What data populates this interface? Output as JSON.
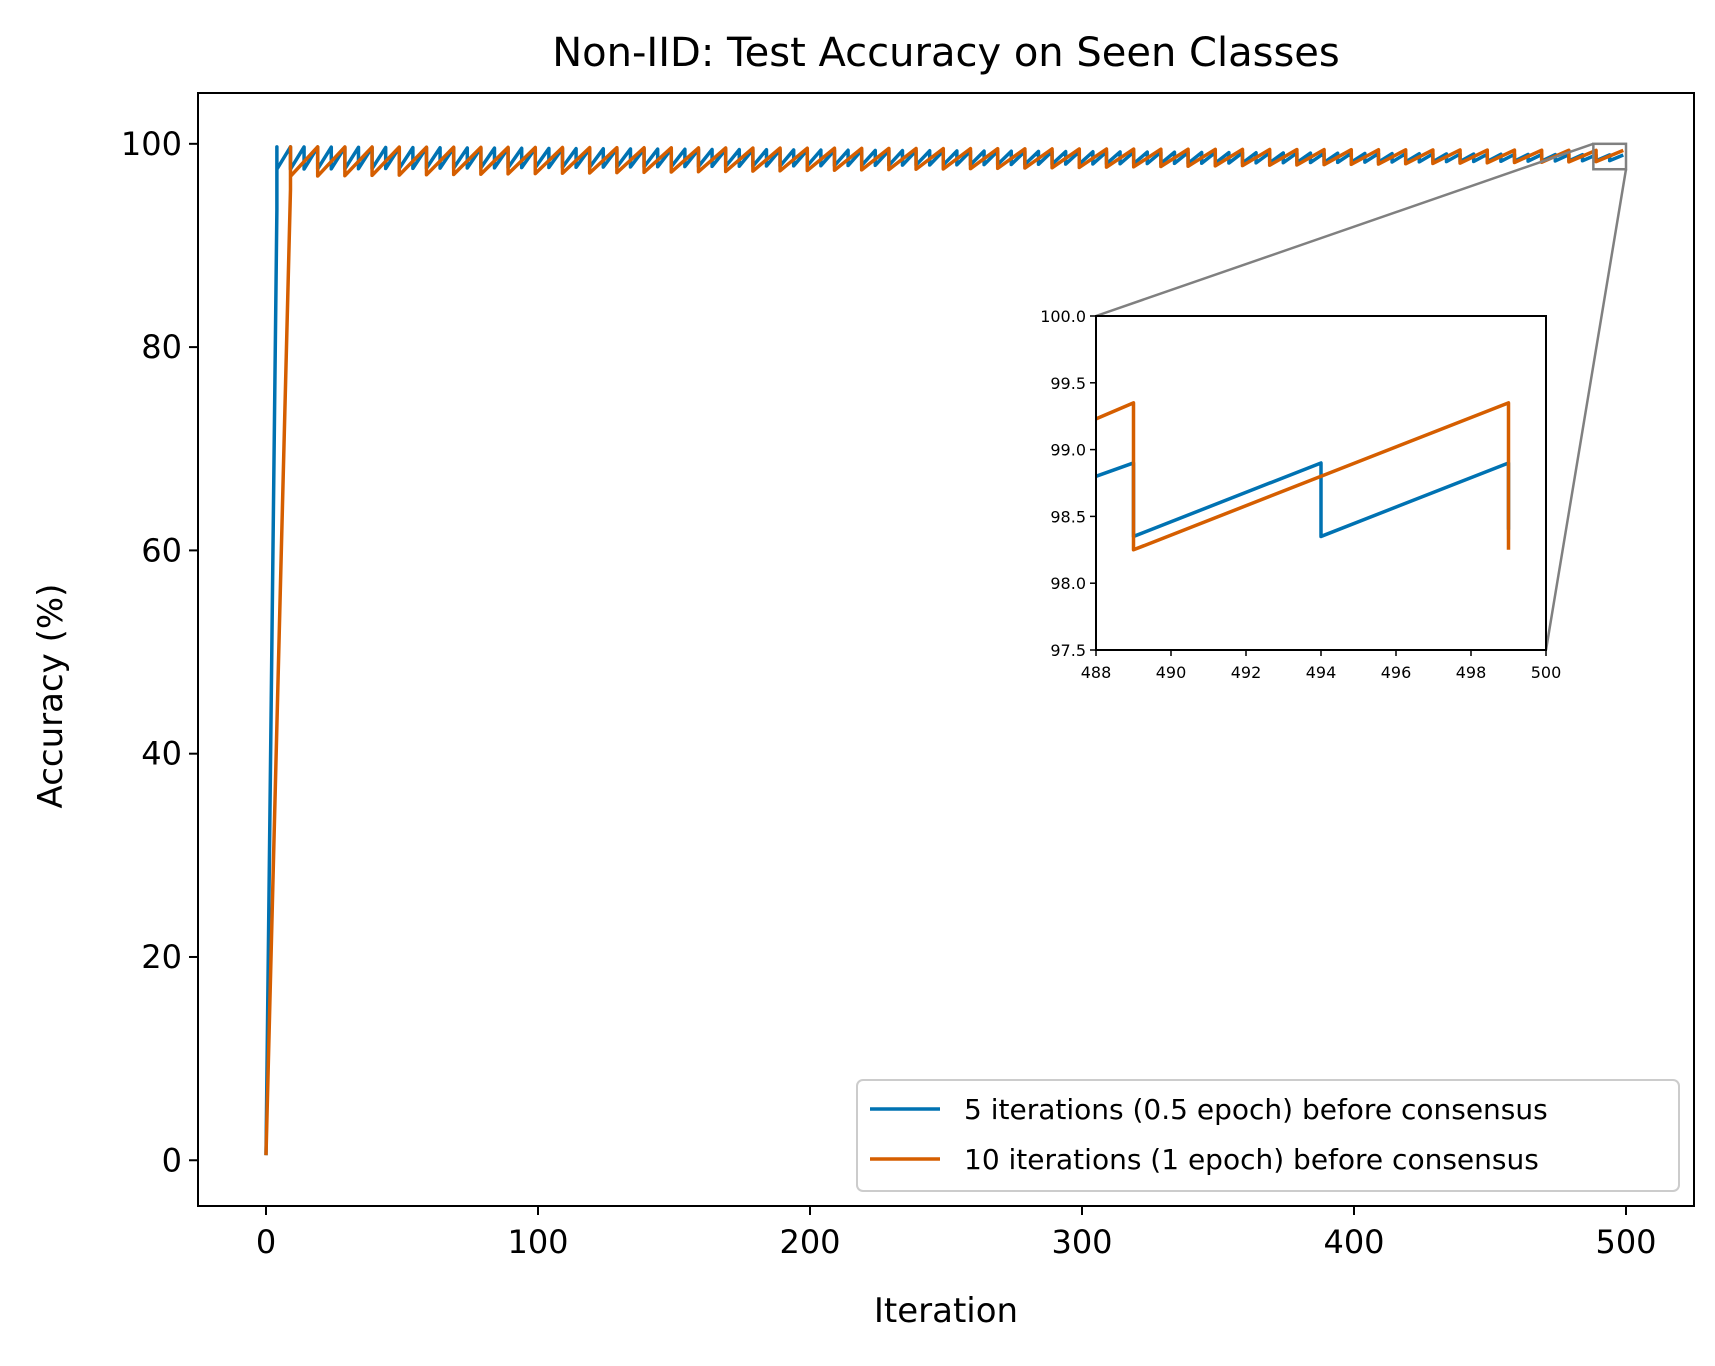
{
  "chart_data": {
    "type": "line",
    "title": "Non-IID: Test Accuracy on Seen Classes",
    "xlabel": "Iteration",
    "ylabel": "Accuracy (%)",
    "xlim": [
      -25,
      525
    ],
    "ylim": [
      -4.5,
      105
    ],
    "xticks": [
      0,
      100,
      200,
      300,
      400,
      500
    ],
    "yticks": [
      0,
      20,
      40,
      60,
      80,
      100
    ],
    "grid": false,
    "legend_position": "lower-right",
    "series": [
      {
        "name": "5 iterations (0.5 epoch) before consensus",
        "color": "#0072B2",
        "period": 5,
        "values_note_start": [
          [
            0,
            0.5
          ],
          [
            4,
            93.5
          ],
          [
            4,
            99.7
          ]
        ],
        "sawtooth_low_start": 97.5,
        "sawtooth_low_end": 98.35,
        "sawtooth_high": 99.7,
        "sawtooth_high_end": 98.9,
        "x_end": 499
      },
      {
        "name": "10 iterations (1 epoch) before consensus",
        "color": "#D55E00",
        "period": 10,
        "values_note_start": [
          [
            0,
            0.5
          ],
          [
            9,
            95.5
          ],
          [
            9,
            99.7
          ]
        ],
        "sawtooth_low_start": 96.8,
        "sawtooth_low_end": 98.25,
        "sawtooth_high": 99.7,
        "sawtooth_high_end": 99.35,
        "x_end": 500
      }
    ],
    "inset": {
      "xlim": [
        488,
        500
      ],
      "ylim": [
        97.5,
        100.0
      ],
      "xticks": [
        488,
        490,
        492,
        494,
        496,
        498,
        500
      ],
      "yticks": [
        97.5,
        98.0,
        98.5,
        99.0,
        99.5,
        100.0
      ],
      "series": [
        {
          "name": "5 iterations (0.5 epoch) before consensus",
          "points": [
            [
              488,
              98.8
            ],
            [
              489,
              98.9
            ],
            [
              489,
              98.35
            ],
            [
              494,
              98.9
            ],
            [
              494,
              98.35
            ],
            [
              499,
              98.9
            ],
            [
              499,
              98.4
            ]
          ]
        },
        {
          "name": "10 iterations (1 epoch) before consensus",
          "points": [
            [
              488,
              99.23
            ],
            [
              489,
              99.35
            ],
            [
              489,
              98.25
            ],
            [
              499,
              99.35
            ],
            [
              499,
              98.25
            ]
          ]
        }
      ]
    }
  }
}
